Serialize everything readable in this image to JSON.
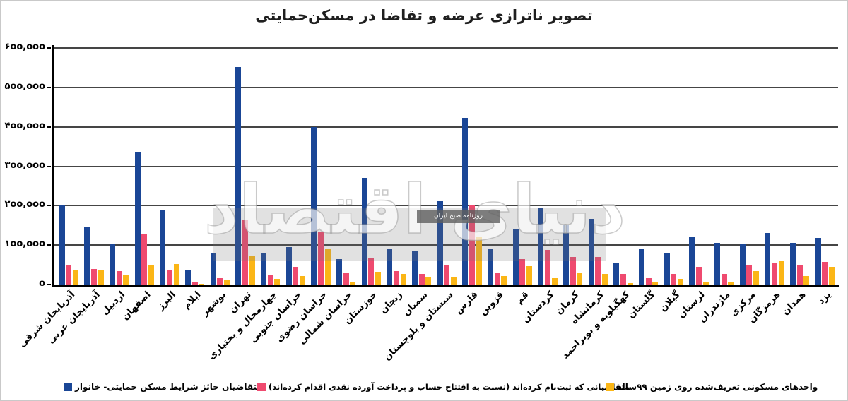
{
  "title": "تصویر ناترازی عرضه و تقاضا در مسکن‌حمایتی",
  "watermark": {
    "brand": "دنیای اقتصاد",
    "box_label": "روزنامه صبح ایران"
  },
  "colors": {
    "blue": "#1A4696",
    "pink": "#EF4A6F",
    "yellow": "#FBB616",
    "gridline": "#454545"
  },
  "chart_data": {
    "type": "bar",
    "title": "تصویر ناترازی عرضه و تقاضا در مسکن‌حمایتی",
    "categories": [
      "آذربایجان شرقی",
      "آذربایجان غربی",
      "اردبیل",
      "اصفهان",
      "البرز",
      "ایلام",
      "بوشهر",
      "تهران",
      "چهارمحال و بختیاری",
      "خراسان جنوبی",
      "خراسان رضوی",
      "خراسان شمالی",
      "خوزستان",
      "زنجان",
      "سمنان",
      "سیستان و بلوچستان",
      "فارس",
      "قزوین",
      "قم",
      "کردستان",
      "کرمان",
      "کرمانشاه",
      "کهگیلویه و بویراحمد",
      "گلستان",
      "گیلان",
      "لرستان",
      "مازندران",
      "مرکزی",
      "هرمزگان",
      "همدان",
      "یزد"
    ],
    "series": [
      {
        "name": "متقاضیان حائز شرایط مسکن حمایتی- خانوار",
        "color": "#1A4696",
        "values": [
          200000,
          146000,
          102000,
          335000,
          188000,
          35000,
          78000,
          551000,
          78000,
          95000,
          400000,
          64000,
          270000,
          91000,
          84000,
          212000,
          422000,
          89000,
          139000,
          194000,
          151000,
          166000,
          55000,
          92000,
          79000,
          122000,
          105000,
          102000,
          131000,
          105000,
          119000
        ]
      },
      {
        "name": "متقاضیانی که ثبت‌نام کرده‌اند (نسبت به افتتاح حساب و  پرداخت آورده نقدی اقدام کرده‌اند)",
        "color": "#EF4A6F",
        "values": [
          50000,
          40000,
          34000,
          129000,
          36000,
          8000,
          17000,
          163000,
          24000,
          44000,
          133000,
          29000,
          67000,
          34000,
          26000,
          48000,
          200000,
          29000,
          64000,
          87000,
          69000,
          70000,
          27000,
          16000,
          26000,
          45000,
          27000,
          51000,
          54000,
          48000,
          57000
        ]
      },
      {
        "name": "واحدهای مسکونی تعریف‌شده روی زمین ۹۹ساله",
        "color": "#FBB616",
        "values": [
          35000,
          36000,
          24000,
          48000,
          52000,
          2000,
          13000,
          73000,
          15000,
          21000,
          90000,
          8000,
          33000,
          27000,
          18000,
          20000,
          121000,
          22000,
          47000,
          17000,
          29000,
          26000,
          4000,
          6000,
          14000,
          7000,
          6000,
          34000,
          61000,
          21000,
          45000
        ]
      }
    ],
    "ylim": [
      0,
      600000
    ],
    "ytick_step": 100000,
    "ytick_labels": [
      "۰",
      "۱۰۰,۰۰۰",
      "۲۰۰,۰۰۰",
      "۳۰۰,۰۰۰",
      "۴۰۰,۰۰۰",
      "۵۰۰,۰۰۰",
      "۶۰۰,۰۰۰"
    ],
    "grid": true,
    "legend_position": "bottom"
  }
}
